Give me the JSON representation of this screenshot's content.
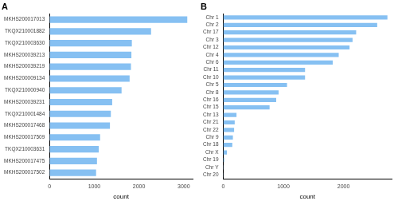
{
  "chart_data": [
    {
      "type": "bar",
      "title": "A",
      "orientation": "horizontal",
      "grid": false,
      "color": "#86c0f2",
      "categories": [
        "MKHS200017013",
        "TKQX210001882",
        "TKQX210003630",
        "MKHS200039213",
        "MKHS200039219",
        "MKHS200009134",
        "TKQX210000940",
        "MKHS200039231",
        "TKQX210001484",
        "MKHS200017468",
        "MKHS200017509",
        "TKQX210003631",
        "MKHS200017475",
        "MKHS200017502"
      ],
      "values": [
        3080,
        2270,
        1840,
        1830,
        1820,
        1790,
        1610,
        1400,
        1370,
        1350,
        1130,
        1100,
        1060,
        1040
      ],
      "xlabel": "count",
      "xlim": [
        0,
        3200
      ],
      "xticks": [
        0,
        1000,
        2000,
        3000
      ]
    },
    {
      "type": "bar",
      "title": "B",
      "orientation": "horizontal",
      "grid": false,
      "color": "#86c0f2",
      "categories": [
        "Chr 1",
        "Chr 2",
        "Chr 17",
        "Chr 3",
        "Chr 12",
        "Chr 4",
        "Chr 6",
        "Chr 11",
        "Chr 10",
        "Chr 5",
        "Chr 8",
        "Chr 16",
        "Chr 15",
        "Chr 13",
        "Chr 21",
        "Chr 22",
        "Chr 9",
        "Chr 18",
        "Chr X",
        "Chr 19",
        "Chr Y",
        "Chr 20"
      ],
      "values": [
        2730,
        2560,
        2210,
        2150,
        2100,
        1920,
        1820,
        1360,
        1360,
        1060,
        920,
        880,
        770,
        220,
        190,
        180,
        160,
        150,
        60,
        15,
        5,
        3
      ],
      "xlabel": "count",
      "xlim": [
        0,
        2800
      ],
      "xticks": [
        0,
        1000,
        2000
      ]
    }
  ]
}
